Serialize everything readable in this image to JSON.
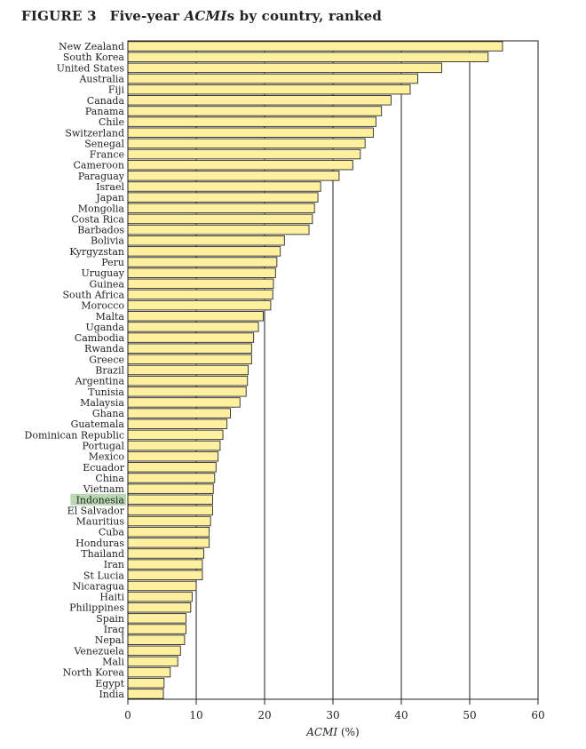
{
  "figure": {
    "label": "FIGURE 3",
    "title_pre": "Five-year ",
    "title_italic": "ACMI",
    "title_post": "s by country, ranked"
  },
  "chart_data": {
    "type": "bar",
    "orientation": "horizontal",
    "categories": [
      "New Zealand",
      "South Korea",
      "United States",
      "Australia",
      "Fiji",
      "Canada",
      "Panama",
      "Chile",
      "Switzerland",
      "Senegal",
      "France",
      "Cameroon",
      "Paraguay",
      "Israel",
      "Japan",
      "Mongolia",
      "Costa Rica",
      "Barbados",
      "Bolivia",
      "Kyrgyzstan",
      "Peru",
      "Uruguay",
      "Guinea",
      "South Africa",
      "Morocco",
      "Malta",
      "Uganda",
      "Cambodia",
      "Rwanda",
      "Greece",
      "Brazil",
      "Argentina",
      "Tunisia",
      "Malaysia",
      "Ghana",
      "Guatemala",
      "Dominican Republic",
      "Portugal",
      "Mexico",
      "Ecuador",
      "China",
      "Vietnam",
      "Indonesia",
      "El Salvador",
      "Mauritius",
      "Cuba",
      "Honduras",
      "Thailand",
      "Iran",
      "St Lucia",
      "Nicaragua",
      "Haiti",
      "Philippines",
      "Spain",
      "Iraq",
      "Nepal",
      "Venezuela",
      "Mali",
      "North Korea",
      "Egypt",
      "India"
    ],
    "values": [
      54.8,
      52.7,
      45.9,
      42.4,
      41.3,
      38.5,
      37.1,
      36.3,
      35.9,
      34.7,
      34.0,
      32.9,
      30.9,
      28.2,
      27.8,
      27.3,
      27.0,
      26.5,
      22.9,
      22.3,
      21.8,
      21.6,
      21.3,
      21.2,
      20.9,
      19.8,
      19.1,
      18.4,
      18.1,
      18.1,
      17.6,
      17.5,
      17.3,
      16.4,
      15.0,
      14.5,
      13.9,
      13.5,
      13.2,
      12.9,
      12.7,
      12.5,
      12.4,
      12.4,
      12.1,
      11.9,
      11.9,
      11.1,
      10.9,
      10.9,
      10.0,
      9.4,
      9.2,
      8.5,
      8.5,
      8.3,
      7.7,
      7.3,
      6.2,
      5.3,
      5.2
    ],
    "highlight": "Indonesia",
    "xlabel_italic": "ACMI",
    "xlabel_unit": " (%)",
    "xlim": [
      0,
      60
    ],
    "xticks": [
      0,
      10,
      20,
      30,
      40,
      50,
      60
    ],
    "grid": "vertical",
    "colors": {
      "bar_fill": "#fff0a0",
      "bar_stroke": "#2a2a2a",
      "highlight_bg": "#b9d7b0",
      "axis": "#222222",
      "grid": "#222222"
    }
  }
}
